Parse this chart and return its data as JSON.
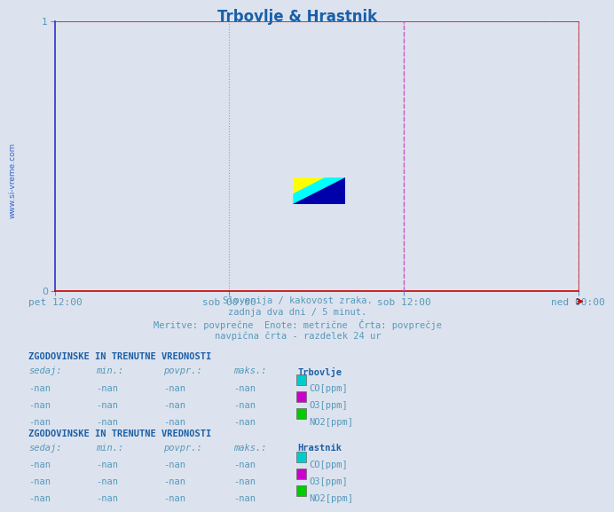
{
  "title": "Trbovlje & Hrastnik",
  "title_color": "#1a5fa8",
  "background_color": "#dde3ee",
  "plot_bg_color": "#dde3ee",
  "ylim": [
    0,
    1
  ],
  "yticks": [
    0,
    1
  ],
  "x_tick_labels": [
    "pet 12:00",
    "sob 00:00",
    "sob 12:00",
    "ned 00:00"
  ],
  "x_tick_positions": [
    0.0,
    0.333,
    0.667,
    1.0
  ],
  "vertical_lines": [
    0.5,
    1.0
  ],
  "vertical_line_color": "#cc55cc",
  "grid_color_h": "#cc8888",
  "grid_color_v": "#ccaacc",
  "axis_color": "#cc0000",
  "left_spine_color": "#3333cc",
  "watermark_text": "www.si-vreme.com",
  "watermark_color": "#3366cc",
  "footer_lines": [
    "Slovenija / kakovost zraka.",
    "zadnja dva dni / 5 minut.",
    "Meritve: povprečne  Enote: metrične  Črta: povprečje",
    "navpična črta - razdelek 24 ur"
  ],
  "footer_color": "#5599bb",
  "section_title": "ZGODOVINSKE IN TRENUTNE VREDNOSTI",
  "section_title_color": "#1a5fa8",
  "table_header": [
    "sedaj:",
    "min.:",
    "povpr.:",
    "maks.:"
  ],
  "table_color": "#5599bb",
  "stations": [
    "Trbovlje",
    "Hrastnik"
  ],
  "pollutants": [
    "CO[ppm]",
    "O3[ppm]",
    "NO2[ppm]"
  ],
  "pollutant_colors": [
    "#00cccc",
    "#cc00cc",
    "#00cc00"
  ],
  "logo_colors": [
    "#ffff00",
    "#00ffff",
    "#0000aa"
  ]
}
